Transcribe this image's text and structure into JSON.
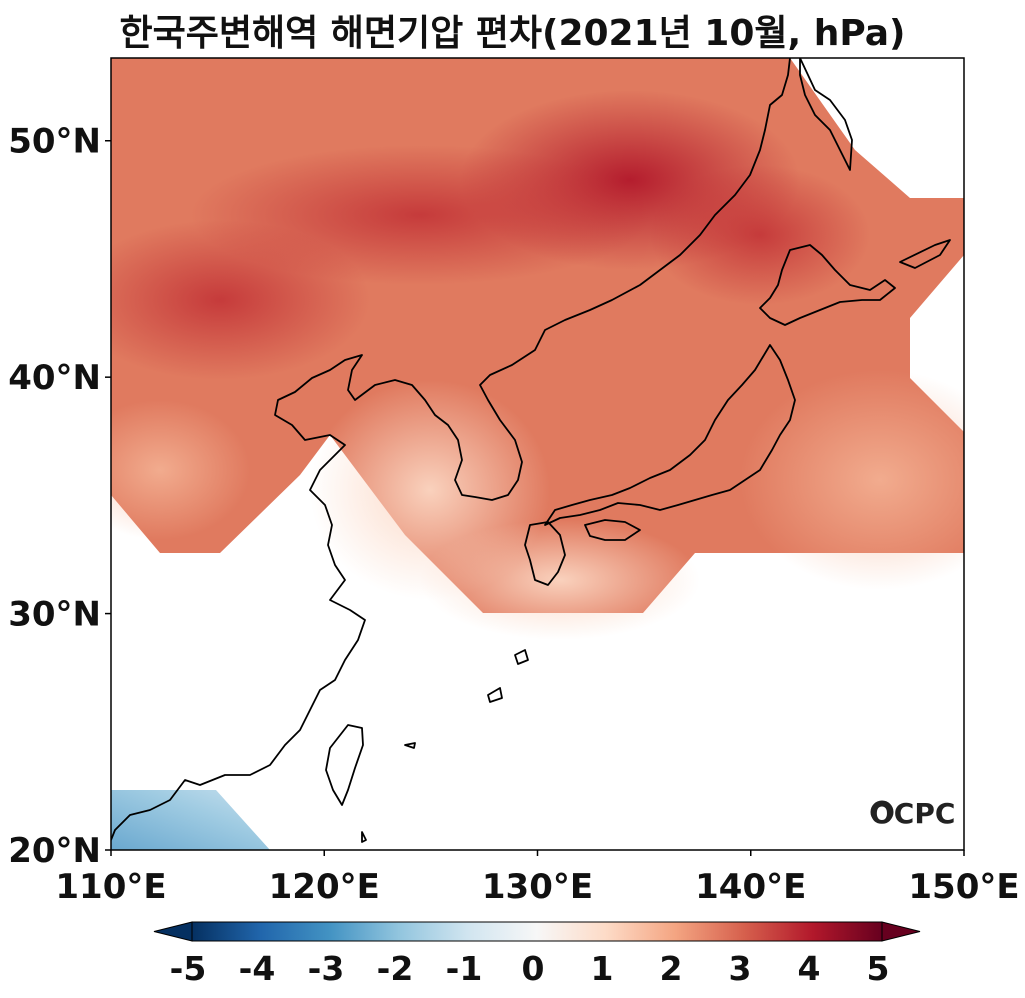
{
  "title": "한국주변해역 해면기압 편차(2021년 10월, hPa)",
  "watermark": "OCPC",
  "map": {
    "lon_range": [
      110,
      150
    ],
    "lat_range": [
      20,
      53.5
    ],
    "lat_ticks": [
      {
        "value": 20,
        "label": "20°N"
      },
      {
        "value": 30,
        "label": "30°N"
      },
      {
        "value": 40,
        "label": "40°N"
      },
      {
        "value": 50,
        "label": "50°N"
      }
    ],
    "lon_ticks": [
      {
        "value": 110,
        "label": "110°E"
      },
      {
        "value": 120,
        "label": "120°E"
      },
      {
        "value": 130,
        "label": "130°E"
      },
      {
        "value": 140,
        "label": "140°E"
      },
      {
        "value": 150,
        "label": "150°E"
      }
    ]
  },
  "colorbar": {
    "min": -5,
    "max": 5,
    "labels": [
      "-5",
      "-4",
      "-3",
      "-2",
      "-1",
      "0",
      "1",
      "2",
      "3",
      "4",
      "5"
    ],
    "colors": [
      "#053061",
      "#2166ac",
      "#4393c3",
      "#92c5de",
      "#d1e5f0",
      "#f7f7f7",
      "#fddbc7",
      "#f4a582",
      "#d6604d",
      "#b2182b",
      "#67001f"
    ]
  }
}
